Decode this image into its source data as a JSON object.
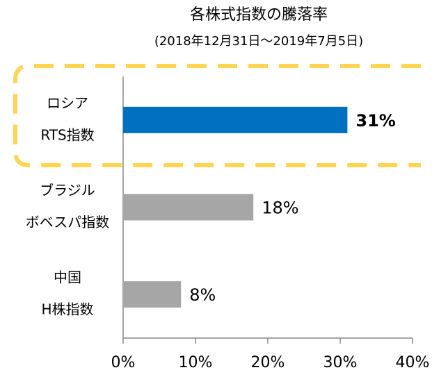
{
  "chart_data": {
    "type": "barh",
    "title": "各株式指数の騰落率",
    "subtitle": "(2018年12月31日～2019年7月5日)",
    "categories": [
      [
        "ロシア",
        "RTS指数"
      ],
      [
        "ブラジル",
        "ボベスパ指数"
      ],
      [
        "中国",
        "H株指数"
      ]
    ],
    "values": [
      31,
      18,
      8
    ],
    "value_labels": [
      "31%",
      "18%",
      "8%"
    ],
    "colors": [
      "#0070c0",
      "#a6a6a6",
      "#a6a6a6"
    ],
    "label_colors": [
      "#0070c0",
      "#000000",
      "#000000"
    ],
    "label_bold": [
      true,
      false,
      false
    ],
    "xlim": [
      0,
      40
    ],
    "xticks": [
      {
        "value": 0,
        "label": "0%"
      },
      {
        "value": 10,
        "label": "10%"
      },
      {
        "value": 20,
        "label": "20%"
      },
      {
        "value": 30,
        "label": "30%"
      },
      {
        "value": 40,
        "label": "40%"
      }
    ],
    "grid": false
  }
}
